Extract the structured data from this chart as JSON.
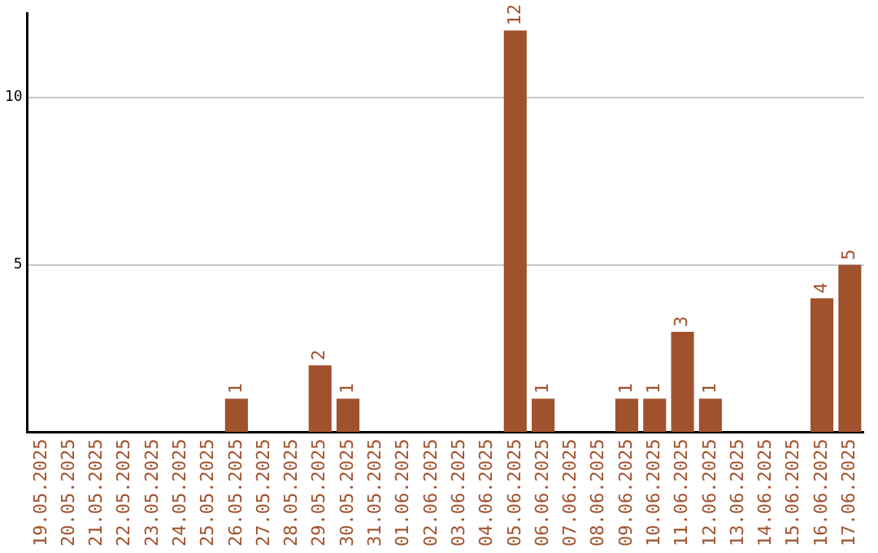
{
  "chart_data": {
    "type": "bar",
    "categories": [
      "19.05.2025",
      "20.05.2025",
      "21.05.2025",
      "22.05.2025",
      "23.05.2025",
      "24.05.2025",
      "25.05.2025",
      "26.05.2025",
      "27.05.2025",
      "28.05.2025",
      "29.05.2025",
      "30.05.2025",
      "31.05.2025",
      "01.06.2025",
      "02.06.2025",
      "03.06.2025",
      "04.06.2025",
      "05.06.2025",
      "06.06.2025",
      "07.06.2025",
      "08.06.2025",
      "09.06.2025",
      "10.06.2025",
      "11.06.2025",
      "12.06.2025",
      "13.06.2025",
      "14.06.2025",
      "15.06.2025",
      "16.06.2025",
      "17.06.2025"
    ],
    "values": [
      0,
      0,
      0,
      0,
      0,
      0,
      0,
      1,
      0,
      0,
      2,
      1,
      0,
      0,
      0,
      0,
      0,
      12,
      1,
      0,
      0,
      1,
      1,
      3,
      1,
      0,
      0,
      0,
      4,
      5
    ],
    "value_labels": [
      null,
      null,
      null,
      null,
      null,
      null,
      null,
      "1",
      null,
      null,
      "2",
      "1",
      null,
      null,
      null,
      null,
      null,
      "12",
      "1",
      null,
      null,
      "1",
      "1",
      "3",
      "1",
      null,
      null,
      null,
      "4",
      "5"
    ],
    "color": "#a0522d",
    "ylim": [
      0,
      12.5
    ],
    "yticks": [
      5,
      10
    ],
    "grid": "y",
    "legend": false
  }
}
